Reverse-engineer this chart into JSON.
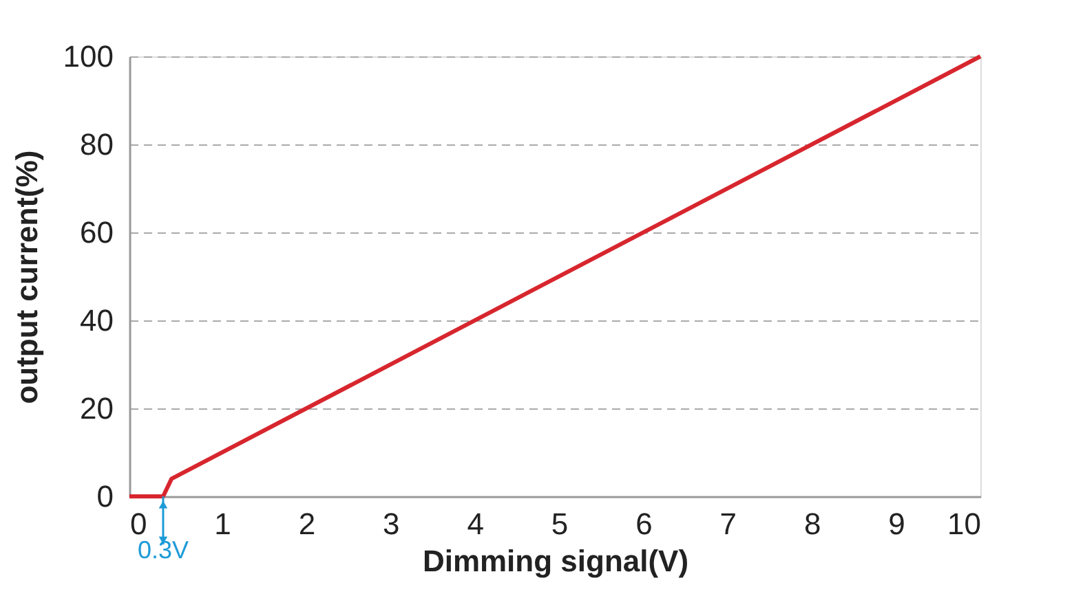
{
  "chart_data": {
    "type": "line",
    "xlabel": "Dimming signal(V)",
    "ylabel": "output current(%)",
    "x": [
      -0.1,
      0.3,
      0.4,
      10
    ],
    "series": [
      {
        "color": "#d7262e",
        "values": [
          0,
          0,
          4,
          100
        ]
      }
    ],
    "xlim": [
      -0.1,
      10
    ],
    "xticks": [
      0,
      1,
      2,
      3,
      4,
      5,
      6,
      7,
      8,
      9,
      10
    ],
    "ylim": [
      0,
      100
    ],
    "yticks": [
      0,
      20,
      40,
      60,
      80,
      100
    ],
    "grid": "y",
    "marker": "none",
    "line_style": "solid",
    "annotations": [
      {
        "text": "0.3V",
        "x": 0.3,
        "y": 0
      }
    ]
  }
}
